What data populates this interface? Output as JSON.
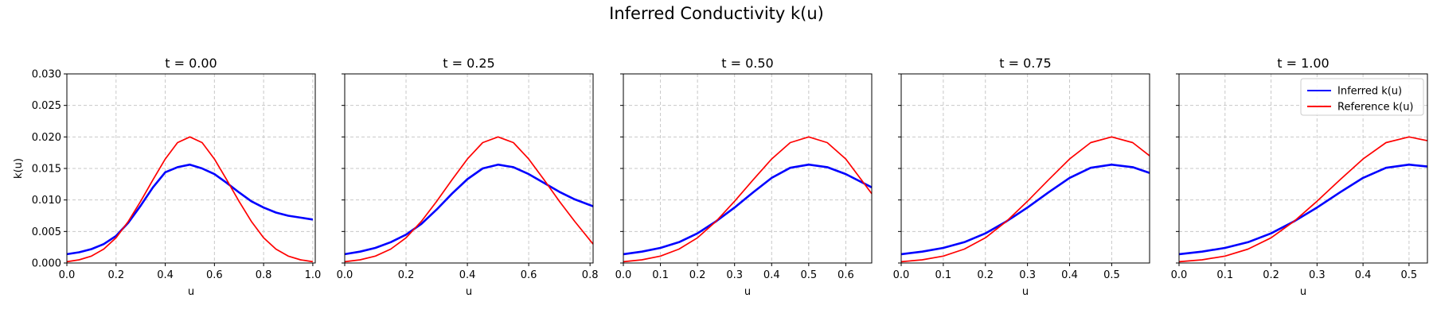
{
  "figure": {
    "title": "Inferred Conductivity k(u)"
  },
  "chart_data": [
    {
      "type": "line",
      "title": "t = 0.00",
      "xlabel": "u",
      "ylabel": "k(u)",
      "xlim": [
        0.0,
        1.01
      ],
      "ylim": [
        0.0,
        0.03
      ],
      "xticks": [
        "0.0",
        "0.2",
        "0.4",
        "0.6",
        "0.8",
        "1.0"
      ],
      "yticks": [
        "0.000",
        "0.005",
        "0.010",
        "0.015",
        "0.020",
        "0.025",
        "0.030"
      ],
      "grid": true,
      "series": [
        {
          "name": "Inferred k(u)",
          "color": "#0000ff",
          "x": [
            0.0,
            0.05,
            0.1,
            0.15,
            0.2,
            0.25,
            0.3,
            0.35,
            0.4,
            0.45,
            0.5,
            0.55,
            0.6,
            0.65,
            0.7,
            0.75,
            0.8,
            0.85,
            0.9,
            0.95,
            1.0
          ],
          "y": [
            0.0014,
            0.0017,
            0.0022,
            0.003,
            0.0043,
            0.0064,
            0.0091,
            0.012,
            0.0144,
            0.0152,
            0.0156,
            0.015,
            0.0141,
            0.0127,
            0.0112,
            0.0098,
            0.0088,
            0.008,
            0.0075,
            0.0072,
            0.0069
          ]
        },
        {
          "name": "Reference k(u)",
          "color": "#ff0000",
          "x": [
            0.0,
            0.05,
            0.1,
            0.15,
            0.2,
            0.25,
            0.3,
            0.35,
            0.4,
            0.45,
            0.5,
            0.55,
            0.6,
            0.65,
            0.7,
            0.75,
            0.8,
            0.85,
            0.9,
            0.95,
            1.0
          ],
          "y": [
            0.0002,
            0.0005,
            0.0011,
            0.0022,
            0.004,
            0.0066,
            0.0098,
            0.0132,
            0.0165,
            0.0191,
            0.02,
            0.0191,
            0.0165,
            0.0132,
            0.0098,
            0.0066,
            0.004,
            0.0022,
            0.0011,
            0.0005,
            0.0002
          ]
        }
      ]
    },
    {
      "type": "line",
      "title": "t = 0.25",
      "xlabel": "u",
      "ylabel": "",
      "xlim": [
        0.0,
        0.81
      ],
      "ylim": [
        0.0,
        0.03
      ],
      "xticks": [
        "0.0",
        "0.2",
        "0.4",
        "0.6",
        "0.8"
      ],
      "yticks": [],
      "grid": true,
      "series": [
        {
          "name": "Inferred k(u)",
          "color": "#0000ff",
          "x": [
            0.0,
            0.05,
            0.1,
            0.15,
            0.2,
            0.25,
            0.3,
            0.35,
            0.4,
            0.45,
            0.5,
            0.55,
            0.6,
            0.65,
            0.7,
            0.75,
            0.81
          ],
          "y": [
            0.0014,
            0.0018,
            0.0024,
            0.0033,
            0.0045,
            0.0062,
            0.0085,
            0.011,
            0.0133,
            0.015,
            0.0156,
            0.0152,
            0.0141,
            0.0127,
            0.0113,
            0.0101,
            0.009
          ]
        },
        {
          "name": "Reference k(u)",
          "color": "#ff0000",
          "x": [
            0.0,
            0.05,
            0.1,
            0.15,
            0.2,
            0.25,
            0.3,
            0.35,
            0.4,
            0.45,
            0.5,
            0.55,
            0.6,
            0.65,
            0.7,
            0.75,
            0.81
          ],
          "y": [
            0.0002,
            0.0005,
            0.0011,
            0.0022,
            0.004,
            0.0066,
            0.0098,
            0.0132,
            0.0165,
            0.0191,
            0.02,
            0.0191,
            0.0165,
            0.0132,
            0.0098,
            0.0066,
            0.003
          ]
        }
      ]
    },
    {
      "type": "line",
      "title": "t = 0.50",
      "xlabel": "u",
      "ylabel": "",
      "xlim": [
        0.0,
        0.67
      ],
      "ylim": [
        0.0,
        0.03
      ],
      "xticks": [
        "0.0",
        "0.1",
        "0.2",
        "0.3",
        "0.4",
        "0.5",
        "0.6"
      ],
      "yticks": [],
      "grid": true,
      "series": [
        {
          "name": "Inferred k(u)",
          "color": "#0000ff",
          "x": [
            0.0,
            0.05,
            0.1,
            0.15,
            0.2,
            0.25,
            0.3,
            0.35,
            0.4,
            0.45,
            0.5,
            0.55,
            0.6,
            0.67
          ],
          "y": [
            0.0014,
            0.0018,
            0.0024,
            0.0033,
            0.0047,
            0.0066,
            0.0088,
            0.0112,
            0.0135,
            0.0151,
            0.0156,
            0.0152,
            0.0141,
            0.012
          ]
        },
        {
          "name": "Reference k(u)",
          "color": "#ff0000",
          "x": [
            0.0,
            0.05,
            0.1,
            0.15,
            0.2,
            0.25,
            0.3,
            0.35,
            0.4,
            0.45,
            0.5,
            0.55,
            0.6,
            0.67
          ],
          "y": [
            0.0002,
            0.0005,
            0.0011,
            0.0022,
            0.004,
            0.0066,
            0.0098,
            0.0132,
            0.0165,
            0.0191,
            0.02,
            0.0191,
            0.0165,
            0.011
          ]
        }
      ]
    },
    {
      "type": "line",
      "title": "t = 0.75",
      "xlabel": "u",
      "ylabel": "",
      "xlim": [
        0.0,
        0.59
      ],
      "ylim": [
        0.0,
        0.03
      ],
      "xticks": [
        "0.0",
        "0.1",
        "0.2",
        "0.3",
        "0.4",
        "0.5"
      ],
      "yticks": [],
      "grid": true,
      "series": [
        {
          "name": "Inferred k(u)",
          "color": "#0000ff",
          "x": [
            0.0,
            0.05,
            0.1,
            0.15,
            0.2,
            0.25,
            0.3,
            0.35,
            0.4,
            0.45,
            0.5,
            0.55,
            0.59
          ],
          "y": [
            0.0014,
            0.0018,
            0.0024,
            0.0033,
            0.0047,
            0.0066,
            0.0088,
            0.0112,
            0.0135,
            0.0151,
            0.0156,
            0.0152,
            0.0143
          ]
        },
        {
          "name": "Reference k(u)",
          "color": "#ff0000",
          "x": [
            0.0,
            0.05,
            0.1,
            0.15,
            0.2,
            0.25,
            0.3,
            0.35,
            0.4,
            0.45,
            0.5,
            0.55,
            0.59
          ],
          "y": [
            0.0002,
            0.0005,
            0.0011,
            0.0022,
            0.004,
            0.0066,
            0.0098,
            0.0132,
            0.0165,
            0.0191,
            0.02,
            0.0191,
            0.017
          ]
        }
      ]
    },
    {
      "type": "line",
      "title": "t = 1.00",
      "xlabel": "u",
      "ylabel": "",
      "xlim": [
        0.0,
        0.54
      ],
      "ylim": [
        0.0,
        0.03
      ],
      "xticks": [
        "0.0",
        "0.1",
        "0.2",
        "0.3",
        "0.4",
        "0.5"
      ],
      "yticks": [],
      "grid": true,
      "legend": {
        "position": "top-right",
        "entries": [
          "Inferred k(u)",
          "Reference k(u)"
        ]
      },
      "series": [
        {
          "name": "Inferred k(u)",
          "color": "#0000ff",
          "x": [
            0.0,
            0.05,
            0.1,
            0.15,
            0.2,
            0.25,
            0.3,
            0.35,
            0.4,
            0.45,
            0.5,
            0.54
          ],
          "y": [
            0.0014,
            0.0018,
            0.0024,
            0.0033,
            0.0047,
            0.0066,
            0.0088,
            0.0112,
            0.0135,
            0.0151,
            0.0156,
            0.0153
          ]
        },
        {
          "name": "Reference k(u)",
          "color": "#ff0000",
          "x": [
            0.0,
            0.05,
            0.1,
            0.15,
            0.2,
            0.25,
            0.3,
            0.35,
            0.4,
            0.45,
            0.5,
            0.54
          ],
          "y": [
            0.0002,
            0.0005,
            0.0011,
            0.0022,
            0.004,
            0.0066,
            0.0098,
            0.0132,
            0.0165,
            0.0191,
            0.02,
            0.0194
          ]
        }
      ]
    }
  ]
}
